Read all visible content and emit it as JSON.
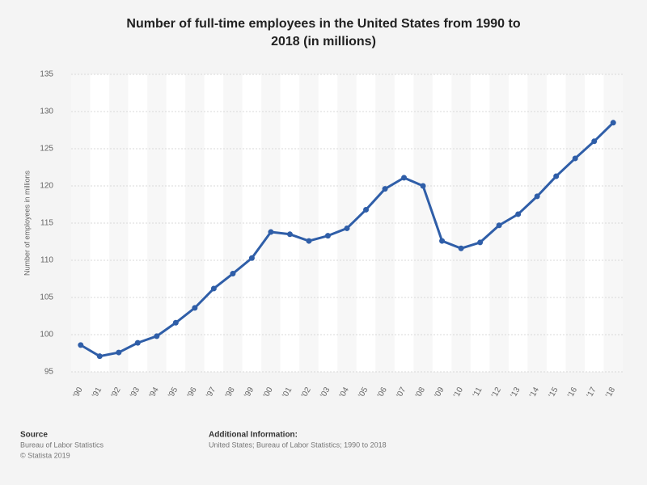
{
  "chart_data": {
    "type": "line",
    "title": "Number of full-time employees in the United States from 1990 to 2018 (in millions)",
    "y_label": "Number of employees in millions",
    "categories": [
      "'90",
      "'91",
      "'92",
      "'93",
      "'94",
      "'95",
      "'96",
      "'97",
      "'98",
      "'99",
      "'00",
      "'01",
      "'02",
      "'03",
      "'04",
      "'05",
      "'06",
      "'07",
      "'08",
      "'09",
      "'10",
      "'11",
      "'12",
      "'13",
      "'14",
      "'15",
      "'16",
      "'17",
      "'18"
    ],
    "series": [
      {
        "name": "Full-time employees",
        "color": "#2f5ea8",
        "values": [
          98.6,
          97.1,
          97.6,
          98.9,
          99.8,
          101.6,
          103.6,
          106.2,
          108.2,
          110.3,
          113.8,
          113.5,
          112.6,
          113.3,
          114.3,
          116.8,
          119.6,
          121.1,
          120.0,
          112.6,
          111.6,
          112.4,
          114.7,
          116.2,
          118.6,
          121.3,
          123.7,
          126.0,
          128.5
        ]
      }
    ],
    "ylim": [
      95,
      135
    ],
    "yticks": [
      95,
      100,
      105,
      110,
      115,
      120,
      125,
      130,
      135
    ],
    "grid": true
  },
  "footer": {
    "source_heading": "Source",
    "source": "Bureau of Labor Statistics",
    "copyright": "© Statista 2019",
    "info_heading": "Additional Information:",
    "info": "United States; Bureau of Labor Statistics; 1990 to 2018"
  }
}
